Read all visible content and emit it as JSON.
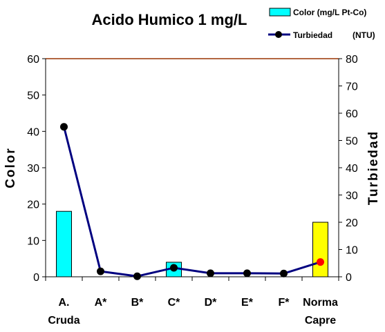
{
  "chart_data": {
    "type": "bar-line",
    "title": "Acido Humico 1 mg/L",
    "categories": [
      [
        "A.",
        "Cruda"
      ],
      [
        "A*"
      ],
      [
        "B*"
      ],
      [
        "C*"
      ],
      [
        "D*"
      ],
      [
        "E*"
      ],
      [
        "F*"
      ],
      [
        "Norma",
        "Capre"
      ]
    ],
    "y_left": {
      "label": "Color",
      "lim": [
        0,
        60
      ],
      "ticks": [
        "0",
        "10",
        "20",
        "30",
        "40",
        "50",
        "60"
      ]
    },
    "y_right": {
      "label": "Turbiedad",
      "lim": [
        0,
        80
      ],
      "ticks": [
        "0",
        "10",
        "20",
        "30",
        "40",
        "50",
        "60",
        "70",
        "80"
      ]
    },
    "series": [
      {
        "name": "Color (mg/L Pt-Co)",
        "kind": "bar",
        "axis": "left",
        "values": [
          18,
          0,
          0,
          4,
          0,
          0,
          0,
          15
        ],
        "colors": [
          "#00ffff",
          "#00ffff",
          "#00ffff",
          "#00ffff",
          "#00ffff",
          "#00ffff",
          "#00ffff",
          "#ffff00"
        ]
      },
      {
        "name": "Turbiedad",
        "unit": "(NTU)",
        "kind": "line",
        "axis": "right",
        "values": [
          55,
          2,
          0.2,
          3.3,
          1.3,
          1.3,
          1.2,
          5.4
        ],
        "line_color": "#000080",
        "marker_color": "#000000",
        "highlight_marker_color": "#ff0000",
        "highlight_index": 7
      }
    ],
    "legend": "top-right",
    "top_border_color": "#993300"
  }
}
